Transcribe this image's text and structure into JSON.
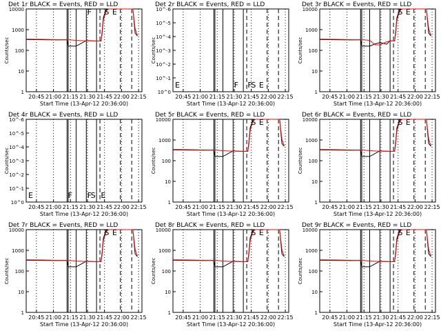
{
  "chart_data": [
    {
      "type": "line",
      "title": "Det 1r BLACK = Events, RED = LLD",
      "xlabel": "Start Time (13-Apr-12 20:36:00)",
      "ylabel": "Counts/sec",
      "x_ticks": [
        "20:45",
        "21:00",
        "21:15",
        "21:30",
        "21:45",
        "22:00",
        "22:15"
      ],
      "y_ticks": [
        "1",
        "10",
        "100",
        "1000",
        "10000"
      ],
      "y_scale": "log",
      "profile": "a",
      "annotations": [
        {
          "text": "S",
          "x": "21:43"
        },
        {
          "text": "E",
          "x": "21:50"
        },
        {
          "text": "F",
          "x": "21:28"
        }
      ],
      "series": [
        {
          "name": "Events",
          "color": "#000000"
        },
        {
          "name": "LLD",
          "color": "#ff0000"
        }
      ],
      "events_x": [
        "20:36",
        "20:50",
        "21:05",
        "21:12",
        "21:13",
        "21:20",
        "21:29",
        "21:38",
        "21:40",
        "21:41",
        "21:42",
        "21:43",
        "21:44",
        "21:46",
        "21:48",
        "21:50",
        "22:00",
        "22:10",
        "22:12",
        "22:14"
      ],
      "events_y": [
        430,
        420,
        410,
        420,
        200,
        200,
        380,
        360,
        360,
        360,
        370,
        1200,
        5500,
        12000,
        15000,
        15000,
        15000,
        15000,
        900,
        650
      ],
      "lld_x": [
        "20:36",
        "20:50",
        "21:05",
        "21:12",
        "21:13",
        "21:20",
        "21:29",
        "21:38",
        "21:40",
        "21:41",
        "21:42",
        "21:43",
        "21:44",
        "21:46",
        "21:48",
        "21:50",
        "22:00",
        "22:10",
        "22:12",
        "22:14"
      ],
      "lld_y": [
        450,
        440,
        420,
        420,
        420,
        390,
        370,
        360,
        360,
        360,
        360,
        900,
        4000,
        10000,
        15000,
        15000,
        15000,
        15000,
        1500,
        700
      ]
    },
    {
      "type": "line",
      "title": "Det 2r BLACK = Events, RED = LLD",
      "xlabel": "Start Time (13-Apr-12 20:36:00)",
      "ylabel": "Counts/sec",
      "x_ticks": [
        "20:45",
        "21:00",
        "21:15",
        "21:30",
        "21:45",
        "22:00",
        "22:15"
      ],
      "y_ticks": [
        "10^0",
        "10^-1",
        "10^-2",
        "10^-3",
        "10^-4",
        "10^-5",
        "10^-6"
      ],
      "y_scale": "empty",
      "profile": "none",
      "annotations": [
        {
          "text": "E",
          "x": "20:36"
        },
        {
          "text": "F",
          "x": "21:28"
        },
        {
          "text": "F",
          "x": "21:40"
        },
        {
          "text": "S",
          "x": "21:43"
        },
        {
          "text": "E",
          "x": "21:50"
        }
      ],
      "series": [
        {
          "name": "Events",
          "color": "#000000"
        },
        {
          "name": "LLD",
          "color": "#ff0000"
        }
      ]
    },
    {
      "type": "line",
      "title": "Det 3r BLACK = Events, RED = LLD",
      "xlabel": "Start Time (13-Apr-12 20:36:00)",
      "ylabel": "Counts/sec",
      "x_ticks": [
        "20:45",
        "21:00",
        "21:15",
        "21:30",
        "21:45",
        "22:00",
        "22:15"
      ],
      "y_ticks": [
        "1",
        "10",
        "100",
        "1000",
        "10000"
      ],
      "y_scale": "log",
      "profile": "b",
      "annotations": [
        {
          "text": "S",
          "x": "21:43"
        },
        {
          "text": "E",
          "x": "21:50"
        }
      ],
      "series": [
        {
          "name": "Events",
          "color": "#000000"
        },
        {
          "name": "LLD",
          "color": "#ff0000"
        }
      ],
      "events_x": [
        "20:36",
        "20:50",
        "21:05",
        "21:12",
        "21:13",
        "21:20",
        "21:25",
        "21:29",
        "21:35",
        "21:38",
        "21:41",
        "21:42",
        "21:43",
        "21:44",
        "21:46",
        "21:48",
        "21:50",
        "22:00",
        "22:10",
        "22:12",
        "22:14"
      ],
      "events_y": [
        430,
        420,
        410,
        420,
        200,
        200,
        260,
        300,
        250,
        370,
        360,
        370,
        1200,
        5500,
        12000,
        15000,
        15000,
        15000,
        15000,
        900,
        650
      ],
      "lld_x": [
        "20:36",
        "20:50",
        "21:05",
        "21:12",
        "21:13",
        "21:20",
        "21:25",
        "21:29",
        "21:35",
        "21:38",
        "21:41",
        "21:42",
        "21:43",
        "21:44",
        "21:46",
        "21:48",
        "21:50",
        "22:00",
        "22:10",
        "22:12",
        "22:14"
      ],
      "lld_y": [
        450,
        440,
        420,
        420,
        420,
        390,
        230,
        230,
        330,
        360,
        360,
        360,
        900,
        4000,
        10000,
        15000,
        15000,
        15000,
        15000,
        1500,
        700
      ]
    },
    {
      "type": "line",
      "title": "Det 4r BLACK = Events, RED = LLD",
      "xlabel": "Start Time (13-Apr-12 20:36:00)",
      "ylabel": "Counts/sec",
      "x_ticks": [
        "20:45",
        "21:00",
        "21:15",
        "21:30",
        "21:45",
        "22:00",
        "22:15"
      ],
      "y_ticks": [
        "10^0",
        "10^-1",
        "10^-2",
        "10^-3",
        "10^-4",
        "10^-5",
        "10^-6"
      ],
      "y_scale": "empty",
      "profile": "none",
      "annotations": [
        {
          "text": "E",
          "x": "20:36"
        },
        {
          "text": "F",
          "x": "21:11"
        },
        {
          "text": "F",
          "x": "21:28"
        },
        {
          "text": "S",
          "x": "21:31"
        },
        {
          "text": "E",
          "x": "21:40"
        }
      ],
      "series": [
        {
          "name": "Events",
          "color": "#000000"
        },
        {
          "name": "LLD",
          "color": "#ff0000"
        }
      ]
    },
    {
      "type": "line",
      "title": "Det 5r BLACK = Events, RED = LLD",
      "xlabel": "Start Time (13-Apr-12 20:36:00)",
      "ylabel": "Counts/sec",
      "x_ticks": [
        "20:45",
        "21:00",
        "21:15",
        "21:30",
        "21:45",
        "22:00",
        "22:15"
      ],
      "y_ticks": [
        "1",
        "10",
        "100",
        "1000",
        "10000"
      ],
      "y_scale": "log",
      "profile": "a",
      "annotations": [
        {
          "text": "S",
          "x": "21:43"
        },
        {
          "text": "E",
          "x": "21:50"
        }
      ],
      "series": [
        {
          "name": "Events",
          "color": "#000000"
        },
        {
          "name": "LLD",
          "color": "#ff0000"
        }
      ],
      "events_x": [
        "20:36",
        "20:50",
        "21:05",
        "21:12",
        "21:13",
        "21:20",
        "21:29",
        "21:38",
        "21:40",
        "21:41",
        "21:42",
        "21:43",
        "21:44",
        "21:46",
        "21:48",
        "21:50",
        "22:00",
        "22:10",
        "22:12",
        "22:14"
      ],
      "events_y": [
        430,
        420,
        410,
        420,
        200,
        200,
        380,
        360,
        360,
        360,
        370,
        1200,
        5500,
        12000,
        15000,
        15000,
        15000,
        15000,
        900,
        650
      ],
      "lld_x": [
        "20:36",
        "20:50",
        "21:05",
        "21:12",
        "21:13",
        "21:20",
        "21:29",
        "21:38",
        "21:40",
        "21:41",
        "21:42",
        "21:43",
        "21:44",
        "21:46",
        "21:48",
        "21:50",
        "22:00",
        "22:10",
        "22:12",
        "22:14"
      ],
      "lld_y": [
        450,
        440,
        420,
        420,
        420,
        390,
        370,
        360,
        360,
        360,
        360,
        900,
        4000,
        10000,
        15000,
        15000,
        15000,
        15000,
        1500,
        700
      ]
    },
    {
      "type": "line",
      "title": "Det 6r BLACK = Events, RED = LLD",
      "xlabel": "Start Time (13-Apr-12 20:36:00)",
      "ylabel": "Counts/sec",
      "x_ticks": [
        "20:45",
        "21:00",
        "21:15",
        "21:30",
        "21:45",
        "22:00",
        "22:15"
      ],
      "y_ticks": [
        "1",
        "10",
        "100",
        "1000",
        "10000"
      ],
      "y_scale": "log",
      "profile": "a",
      "annotations": [
        {
          "text": "S",
          "x": "21:43"
        },
        {
          "text": "E",
          "x": "21:50"
        }
      ],
      "series": [
        {
          "name": "Events",
          "color": "#000000"
        },
        {
          "name": "LLD",
          "color": "#ff0000"
        }
      ],
      "events_x": [
        "20:36",
        "20:50",
        "21:05",
        "21:12",
        "21:13",
        "21:20",
        "21:29",
        "21:38",
        "21:40",
        "21:41",
        "21:42",
        "21:43",
        "21:44",
        "21:46",
        "21:48",
        "21:50",
        "22:00",
        "22:10",
        "22:12",
        "22:14"
      ],
      "events_y": [
        430,
        420,
        410,
        420,
        200,
        200,
        380,
        360,
        360,
        360,
        370,
        1200,
        5500,
        12000,
        15000,
        15000,
        15000,
        15000,
        900,
        650
      ],
      "lld_x": [
        "20:36",
        "20:50",
        "21:05",
        "21:12",
        "21:13",
        "21:20",
        "21:29",
        "21:38",
        "21:40",
        "21:41",
        "21:42",
        "21:43",
        "21:44",
        "21:46",
        "21:48",
        "21:50",
        "22:00",
        "22:10",
        "22:12",
        "22:14"
      ],
      "lld_y": [
        450,
        440,
        420,
        420,
        420,
        390,
        370,
        360,
        360,
        360,
        360,
        900,
        4000,
        10000,
        15000,
        15000,
        15000,
        15000,
        1500,
        700
      ]
    },
    {
      "type": "line",
      "title": "Det 7r BLACK = Events, RED = LLD",
      "xlabel": "Start Time (13-Apr-12 20:36:00)",
      "ylabel": "Counts/sec",
      "x_ticks": [
        "20:45",
        "21:00",
        "21:15",
        "21:30",
        "21:45",
        "22:00",
        "22:15"
      ],
      "y_ticks": [
        "1",
        "10",
        "100",
        "1000",
        "10000"
      ],
      "y_scale": "log",
      "profile": "a",
      "annotations": [
        {
          "text": "S",
          "x": "21:43"
        },
        {
          "text": "E",
          "x": "21:50"
        }
      ],
      "series": [
        {
          "name": "Events",
          "color": "#000000"
        },
        {
          "name": "LLD",
          "color": "#ff0000"
        }
      ],
      "events_x": [
        "20:36",
        "20:50",
        "21:05",
        "21:12",
        "21:13",
        "21:20",
        "21:29",
        "21:38",
        "21:40",
        "21:41",
        "21:42",
        "21:43",
        "21:44",
        "21:46",
        "21:48",
        "21:50",
        "22:00",
        "22:10",
        "22:12",
        "22:14"
      ],
      "events_y": [
        430,
        420,
        410,
        420,
        200,
        200,
        380,
        360,
        360,
        360,
        370,
        1200,
        5500,
        12000,
        15000,
        15000,
        15000,
        15000,
        900,
        650
      ],
      "lld_x": [
        "20:36",
        "20:50",
        "21:05",
        "21:12",
        "21:13",
        "21:20",
        "21:29",
        "21:38",
        "21:40",
        "21:41",
        "21:42",
        "21:43",
        "21:44",
        "21:46",
        "21:48",
        "21:50",
        "22:00",
        "22:10",
        "22:12",
        "22:14"
      ],
      "lld_y": [
        450,
        440,
        420,
        420,
        420,
        390,
        370,
        360,
        360,
        360,
        360,
        900,
        4000,
        10000,
        15000,
        15000,
        15000,
        15000,
        1500,
        700
      ]
    },
    {
      "type": "line",
      "title": "Det 8r BLACK = Events, RED = LLD",
      "xlabel": "Start Time (13-Apr-12 20:36:00)",
      "ylabel": "Counts/sec",
      "x_ticks": [
        "20:45",
        "21:00",
        "21:15",
        "21:30",
        "21:45",
        "22:00",
        "22:15"
      ],
      "y_ticks": [
        "1",
        "10",
        "100",
        "1000",
        "10000"
      ],
      "y_scale": "log",
      "profile": "a",
      "annotations": [
        {
          "text": "S",
          "x": "21:43"
        },
        {
          "text": "E",
          "x": "21:50"
        }
      ],
      "series": [
        {
          "name": "Events",
          "color": "#000000"
        },
        {
          "name": "LLD",
          "color": "#ff0000"
        }
      ],
      "events_x": [
        "20:36",
        "20:50",
        "21:05",
        "21:12",
        "21:13",
        "21:20",
        "21:29",
        "21:38",
        "21:40",
        "21:41",
        "21:42",
        "21:43",
        "21:44",
        "21:46",
        "21:48",
        "21:50",
        "22:00",
        "22:10",
        "22:12",
        "22:14"
      ],
      "events_y": [
        430,
        420,
        410,
        420,
        200,
        200,
        380,
        360,
        360,
        360,
        370,
        1200,
        5500,
        12000,
        15000,
        15000,
        15000,
        15000,
        900,
        650
      ],
      "lld_x": [
        "20:36",
        "20:50",
        "21:05",
        "21:12",
        "21:13",
        "21:20",
        "21:29",
        "21:38",
        "21:40",
        "21:41",
        "21:42",
        "21:43",
        "21:44",
        "21:46",
        "21:48",
        "21:50",
        "22:00",
        "22:10",
        "22:12",
        "22:14"
      ],
      "lld_y": [
        450,
        440,
        420,
        420,
        420,
        390,
        370,
        360,
        360,
        360,
        360,
        900,
        4000,
        10000,
        15000,
        15000,
        15000,
        15000,
        1500,
        700
      ]
    },
    {
      "type": "line",
      "title": "Det 9r BLACK = Events, RED = LLD",
      "xlabel": "Start Time (13-Apr-12 20:36:00)",
      "ylabel": "Counts/sec",
      "x_ticks": [
        "20:45",
        "21:00",
        "21:15",
        "21:30",
        "21:45",
        "22:00",
        "22:15"
      ],
      "y_ticks": [
        "1",
        "10",
        "100",
        "1000",
        "10000"
      ],
      "y_scale": "log",
      "profile": "a",
      "annotations": [
        {
          "text": "S",
          "x": "21:43"
        },
        {
          "text": "E",
          "x": "21:50"
        }
      ],
      "series": [
        {
          "name": "Events",
          "color": "#000000"
        },
        {
          "name": "LLD",
          "color": "#ff0000"
        }
      ],
      "events_x": [
        "20:36",
        "20:50",
        "21:05",
        "21:12",
        "21:13",
        "21:20",
        "21:29",
        "21:38",
        "21:40",
        "21:41",
        "21:42",
        "21:43",
        "21:44",
        "21:46",
        "21:48",
        "21:50",
        "22:00",
        "22:10",
        "22:12",
        "22:14"
      ],
      "events_y": [
        430,
        420,
        410,
        420,
        200,
        200,
        380,
        360,
        360,
        360,
        370,
        1200,
        5500,
        12000,
        15000,
        15000,
        15000,
        15000,
        900,
        650
      ],
      "lld_x": [
        "20:36",
        "20:50",
        "21:05",
        "21:12",
        "21:13",
        "21:20",
        "21:29",
        "21:38",
        "21:40",
        "21:41",
        "21:42",
        "21:43",
        "21:44",
        "21:46",
        "21:48",
        "21:50",
        "22:00",
        "22:10",
        "22:12",
        "22:14"
      ],
      "lld_y": [
        450,
        440,
        420,
        420,
        420,
        390,
        370,
        360,
        360,
        360,
        360,
        900,
        4000,
        10000,
        15000,
        15000,
        15000,
        15000,
        1500,
        700
      ]
    }
  ]
}
